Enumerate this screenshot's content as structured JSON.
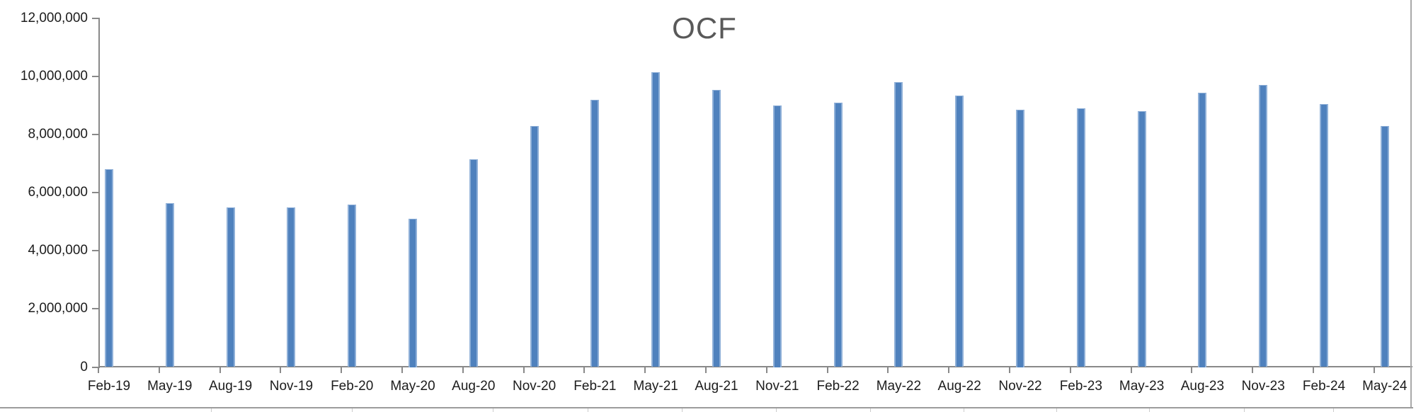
{
  "chart_data": {
    "type": "bar",
    "title": "OCF",
    "categories": [
      "Feb-19",
      "May-19",
      "Aug-19",
      "Nov-19",
      "Feb-20",
      "May-20",
      "Aug-20",
      "Nov-20",
      "Feb-21",
      "May-21",
      "Aug-21",
      "Nov-21",
      "Feb-22",
      "May-22",
      "Aug-22",
      "Nov-22",
      "Feb-23",
      "May-23",
      "Aug-23",
      "Nov-23",
      "Feb-24",
      "May-24"
    ],
    "values": [
      6800000,
      5650000,
      5500000,
      5500000,
      5600000,
      5100000,
      7150000,
      8300000,
      9200000,
      10150000,
      9550000,
      9000000,
      9100000,
      9800000,
      9350000,
      8850000,
      8900000,
      8800000,
      9450000,
      9700000,
      9050000,
      8300000
    ],
    "title_note": "single series, no legend shown",
    "xlabel": "",
    "ylabel": "",
    "ylim": [
      0,
      12000000
    ],
    "ytick_interval": 2000000,
    "ytick_labels": [
      "0",
      "2,000,000",
      "4,000,000",
      "6,000,000",
      "8,000,000",
      "10,000,000",
      "12,000,000"
    ],
    "grid": false,
    "legend_position": "none",
    "colors": {
      "bar_fill": "#4f81bd",
      "bar_edge_highlight": "#8fb0d8",
      "axis_line": "#898989",
      "tick_label": "#1c1c1c",
      "title": "#595959",
      "sheet_border": "#a9a9a9",
      "sheet_rule": "#9c9c9c"
    }
  }
}
